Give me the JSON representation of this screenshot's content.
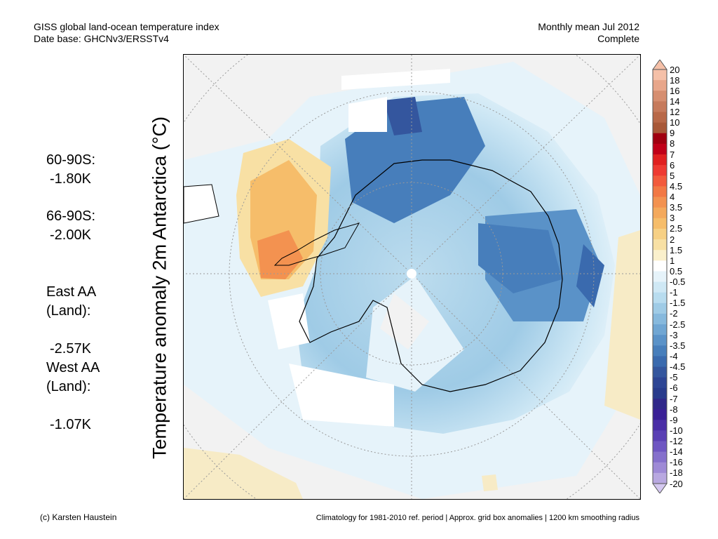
{
  "header": {
    "title": "GISS global land-ocean temperature index",
    "database": "Date base: GHCNv3/ERSSTv4",
    "period": "Monthly mean Jul 2012",
    "status": "Complete"
  },
  "y_axis_label": "Temperature anomaly 2m Antarctica (°C)",
  "stats": [
    {
      "label": "60-90S:",
      "value": "-1.80K"
    },
    {
      "label": "66-90S:",
      "value": "-2.00K"
    },
    {
      "label": "East AA\n(Land):",
      "value": "-2.57K"
    },
    {
      "label": "West AA\n(Land):",
      "value": "-1.07K"
    }
  ],
  "footer": {
    "credit": "(c) Karsten Haustein",
    "note": "Climatology for 1981-2010 ref. period | Approx. grid box anomalies | 1200 km smoothing radius"
  },
  "colorbar": {
    "ticks": [
      "20",
      "18",
      "16",
      "14",
      "12",
      "10",
      "9",
      "8",
      "7",
      "6",
      "5",
      "4.5",
      "4",
      "3.5",
      "3",
      "2.5",
      "2",
      "1.5",
      "1",
      "0.5",
      "-0.5",
      "-1",
      "-1.5",
      "-2",
      "-2.5",
      "-3",
      "-3.5",
      "-4",
      "-4.5",
      "-5",
      "-6",
      "-7",
      "-8",
      "-9",
      "-10",
      "-12",
      "-14",
      "-16",
      "-18",
      "-20"
    ],
    "colors": [
      "#f5c0a8",
      "#e8a68a",
      "#d68e70",
      "#c67a5c",
      "#b86848",
      "#a85838",
      "#a00010",
      "#c00018",
      "#e02020",
      "#ee3a32",
      "#f25a3c",
      "#f27844",
      "#f39250",
      "#f4a95c",
      "#f6bd6a",
      "#f7d084",
      "#f8e0a4",
      "#faf0cc",
      "#ffffff",
      "#e6f3fa",
      "#cfe8f5",
      "#b8dcef",
      "#9fcbe6",
      "#87b9dd",
      "#70a6d3",
      "#5a92c8",
      "#477ebb",
      "#3a6aae",
      "#34569e",
      "#2d4594",
      "#283b8c",
      "#30288a",
      "#3a2096",
      "#4a2ea6",
      "#5a40b4",
      "#6e56c2",
      "#8570cc",
      "#9e8ad6",
      "#b8a8e0"
    ]
  }
}
